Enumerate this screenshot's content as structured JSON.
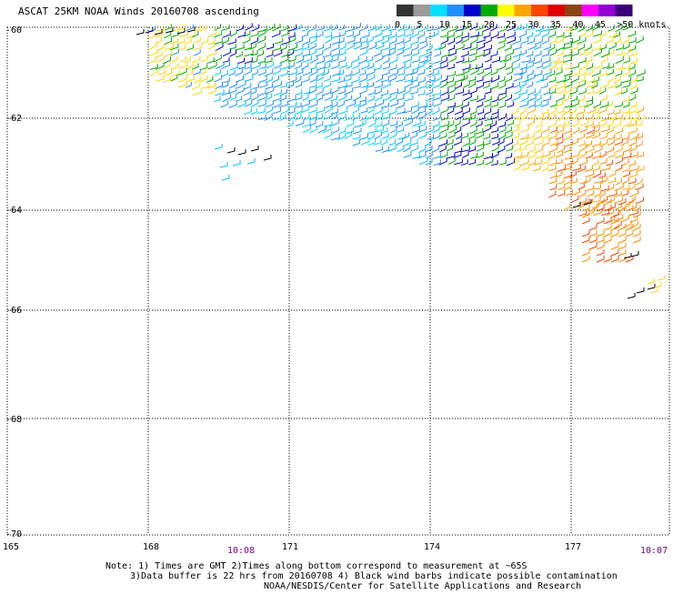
{
  "title": "ASCAT 25KM NOAA Winds 20160708 ascending",
  "legend": {
    "labels": [
      "0",
      "5",
      "10",
      "15",
      "20",
      "25",
      "30",
      "35",
      "40",
      "45",
      ">50 knots"
    ],
    "colors": [
      "#333333",
      "#9a9a9a",
      "#00e0ff",
      "#1e90ff",
      "#0000cd",
      "#00aa00",
      "#ffff00",
      "#ffa500",
      "#ff4500",
      "#e00000",
      "#8b4513",
      "#ff00ff",
      "#9400d3",
      "#3a007a"
    ]
  },
  "axes": {
    "lat_labels": [
      "-60",
      "-62",
      "-64",
      "-66",
      "-68",
      "-70"
    ],
    "lon_labels": [
      "165",
      "168",
      "171",
      "174",
      "177"
    ]
  },
  "times": [
    "10:08",
    "10:07"
  ],
  "notes": [
    "Note: 1) Times are GMT 2)Times along bottom correspond to measurement at ~65S",
    "3)Data buffer is 22 hrs from 20160708 4) Black wind barbs indicate possible contamination",
    "NOAA/NESDIS/Center for Satellite Applications and Research"
  ]
}
